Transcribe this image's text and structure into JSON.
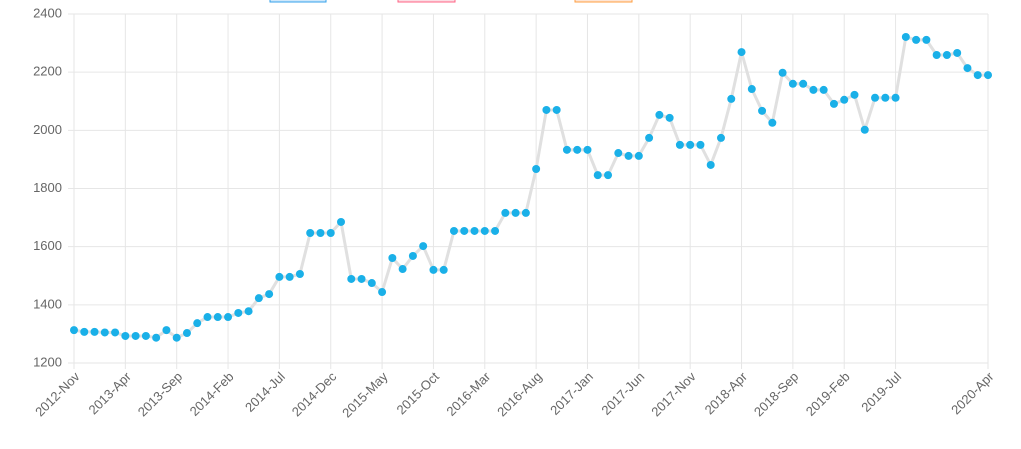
{
  "chart_data": {
    "type": "line",
    "categories": [
      "2012-Nov",
      null,
      null,
      null,
      null,
      "2013-Apr",
      null,
      null,
      null,
      null,
      "2013-Sep",
      null,
      null,
      null,
      null,
      "2014-Feb",
      null,
      null,
      null,
      null,
      "2014-Jul",
      null,
      null,
      null,
      null,
      "2014-Dec",
      null,
      null,
      null,
      null,
      "2015-May",
      null,
      null,
      null,
      null,
      "2015-Oct",
      null,
      null,
      null,
      null,
      "2016-Mar",
      null,
      null,
      null,
      null,
      "2016-Aug",
      null,
      null,
      null,
      null,
      "2017-Jan",
      null,
      null,
      null,
      null,
      "2017-Jun",
      null,
      null,
      null,
      null,
      "2017-Nov",
      null,
      null,
      null,
      null,
      "2018-Apr",
      null,
      null,
      null,
      null,
      "2018-Sep",
      null,
      null,
      null,
      null,
      "2019-Feb",
      null,
      null,
      null,
      null,
      "2019-Jul",
      null,
      null,
      null,
      null,
      null,
      null,
      null,
      null,
      "2020-Apr"
    ],
    "values": [
      1313,
      1307,
      1307,
      1305,
      1305,
      1293,
      1293,
      1293,
      1287,
      1313,
      1287,
      1303,
      1337,
      1358,
      1358,
      1358,
      1372,
      1378,
      1423,
      1437,
      1496,
      1496,
      1506,
      1647,
      1647,
      1647,
      1685,
      1489,
      1489,
      1475,
      1444,
      1561,
      1523,
      1568,
      1602,
      1520,
      1520,
      1654,
      1654,
      1654,
      1654,
      1654,
      1716,
      1716,
      1716,
      1867,
      2070,
      2070,
      1933,
      1933,
      1933,
      1846,
      1846,
      1922,
      1912,
      1912,
      1974,
      2053,
      2043,
      1950,
      1950,
      1950,
      1881,
      1974,
      2108,
      2269,
      2142,
      2067,
      2026,
      2198,
      2160,
      2160,
      2139,
      2139,
      2091,
      2105,
      2122,
      2002,
      2112,
      2112,
      2112,
      2321,
      2311,
      2311,
      2259,
      2259,
      2266,
      2214,
      2190,
      2190
    ],
    "color": "#1ab0e8",
    "line_color": "#e0e0e0",
    "ylim": [
      1200,
      2400
    ],
    "yticks": [
      1200,
      1400,
      1600,
      1800,
      2000,
      2200,
      2400
    ],
    "grid": true
  }
}
